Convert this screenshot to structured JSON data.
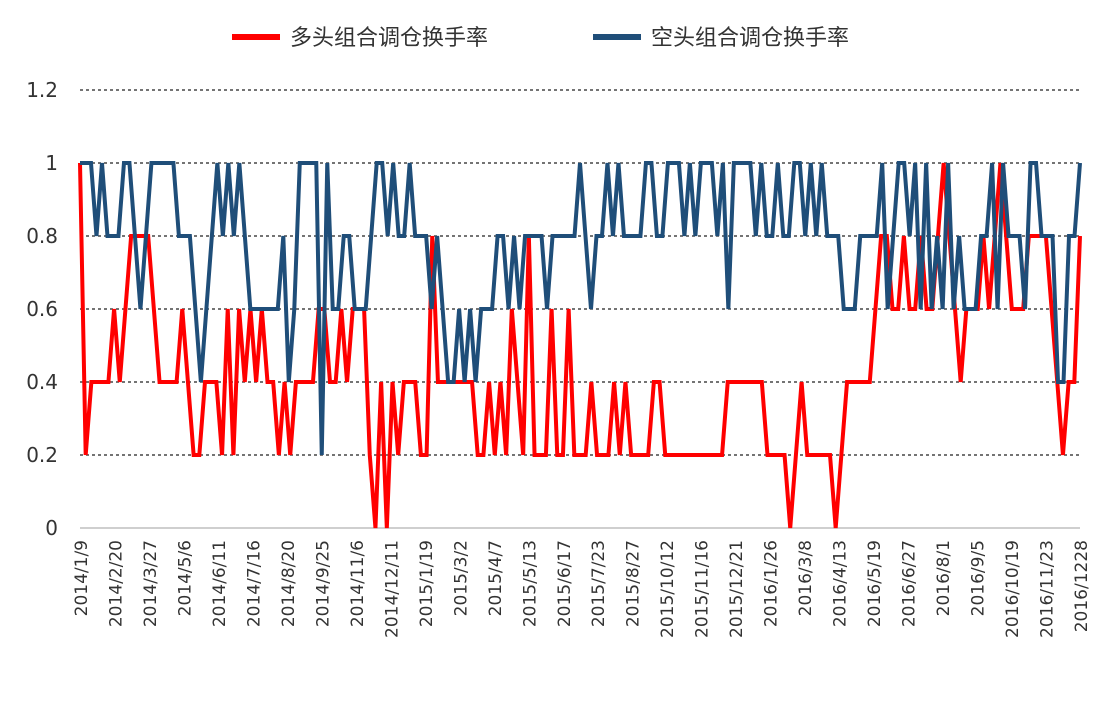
{
  "chart_data": {
    "type": "line",
    "title": "",
    "xlabel": "",
    "ylabel": "",
    "ylim": [
      0,
      1.2
    ],
    "yticks": [
      0,
      0.2,
      0.4,
      0.6,
      0.8,
      1,
      1.2
    ],
    "ytick_labels": [
      "0",
      "0.2",
      "0.4",
      "0.6",
      "0.8",
      "1",
      "1.2"
    ],
    "grid": true,
    "legend_position": "top-center",
    "x_tick_labels": [
      "2014/1/9",
      "2014/2/20",
      "2014/3/27",
      "2014/5/6",
      "2014/6/11",
      "2014/7/16",
      "2014/8/20",
      "2014/9/25",
      "2014/11/6",
      "2014/12/11",
      "2015/1/19",
      "2015/3/2",
      "2015/4/7",
      "2015/5/13",
      "2015/6/17",
      "2015/7/23",
      "2015/8/27",
      "2015/10/12",
      "2015/11/16",
      "2015/12/21",
      "2016/1/26",
      "2016/3/8",
      "2016/4/13",
      "2016/5/19",
      "2016/6/27",
      "2016/8/1",
      "2016/9/5",
      "2016/10/19",
      "2016/11/23",
      "2016/1228"
    ],
    "series": [
      {
        "name": "多头组合调仓换手率",
        "color": "#ff0000",
        "values": [
          1,
          0.2,
          0.4,
          0.4,
          0.4,
          0.4,
          0.6,
          0.4,
          0.6,
          0.8,
          0.8,
          0.8,
          0.8,
          0.6,
          0.4,
          0.4,
          0.4,
          0.4,
          0.6,
          0.4,
          0.2,
          0.2,
          0.4,
          0.4,
          0.4,
          0.2,
          0.6,
          0.2,
          0.6,
          0.4,
          0.6,
          0.4,
          0.6,
          0.4,
          0.4,
          0.2,
          0.4,
          0.2,
          0.4,
          0.4,
          0.4,
          0.4,
          0.6,
          0.6,
          0.4,
          0.4,
          0.6,
          0.4,
          0.6,
          0.6,
          0.6,
          0.2,
          0,
          0.4,
          0,
          0.4,
          0.2,
          0.4,
          0.4,
          0.4,
          0.2,
          0.2,
          0.8,
          0.4,
          0.4,
          0.4,
          0.4,
          0.4,
          0.4,
          0.4,
          0.2,
          0.2,
          0.4,
          0.2,
          0.4,
          0.2,
          0.6,
          0.4,
          0.2,
          0.8,
          0.2,
          0.2,
          0.2,
          0.6,
          0.2,
          0.2,
          0.6,
          0.2,
          0.2,
          0.2,
          0.4,
          0.2,
          0.2,
          0.2,
          0.4,
          0.2,
          0.4,
          0.2,
          0.2,
          0.2,
          0.2,
          0.4,
          0.4,
          0.2,
          0.2,
          0.2,
          0.2,
          0.2,
          0.2,
          0.2,
          0.2,
          0.2,
          0.2,
          0.2,
          0.4,
          0.4,
          0.4,
          0.4,
          0.4,
          0.4,
          0.4,
          0.2,
          0.2,
          0.2,
          0.2,
          0,
          0.2,
          0.4,
          0.2,
          0.2,
          0.2,
          0.2,
          0.2,
          0,
          0.2,
          0.4,
          0.4,
          0.4,
          0.4,
          0.4,
          0.6,
          0.8,
          0.8,
          0.6,
          0.6,
          0.8,
          0.6,
          0.6,
          0.8,
          0.6,
          0.6,
          0.8,
          1,
          0.8,
          0.6,
          0.4,
          0.6,
          0.6,
          0.6,
          0.8,
          0.6,
          0.8,
          1,
          0.8,
          0.6,
          0.6,
          0.6,
          0.8,
          0.8,
          0.8,
          0.8,
          0.6,
          0.4,
          0.2,
          0.4,
          0.4,
          0.8
        ]
      },
      {
        "name": "空头组合调仓换手率",
        "color": "#1f4e79",
        "values": [
          1,
          1,
          1,
          0.8,
          1,
          0.8,
          0.8,
          0.8,
          1,
          1,
          0.8,
          0.6,
          0.8,
          1,
          1,
          1,
          1,
          1,
          0.8,
          0.8,
          0.8,
          0.6,
          0.4,
          0.6,
          0.8,
          1,
          0.8,
          1,
          0.8,
          1,
          0.8,
          0.6,
          0.6,
          0.6,
          0.6,
          0.6,
          0.6,
          0.8,
          0.4,
          0.6,
          1,
          1,
          1,
          1,
          0.2,
          1,
          0.6,
          0.6,
          0.8,
          0.8,
          0.6,
          0.6,
          0.6,
          0.8,
          1,
          1,
          0.8,
          1,
          0.8,
          0.8,
          1,
          0.8,
          0.8,
          0.8,
          0.6,
          0.8,
          0.6,
          0.4,
          0.4,
          0.6,
          0.4,
          0.6,
          0.4,
          0.6,
          0.6,
          0.6,
          0.8,
          0.8,
          0.6,
          0.8,
          0.6,
          0.8,
          0.8,
          0.8,
          0.8,
          0.6,
          0.8,
          0.8,
          0.8,
          0.8,
          0.8,
          1,
          0.8,
          0.6,
          0.8,
          0.8,
          1,
          0.8,
          1,
          0.8,
          0.8,
          0.8,
          0.8,
          1,
          1,
          0.8,
          0.8,
          1,
          1,
          1,
          0.8,
          1,
          0.8,
          1,
          1,
          1,
          0.8,
          1,
          0.6,
          1,
          1,
          1,
          1,
          0.8,
          1,
          0.8,
          0.8,
          1,
          0.8,
          0.8,
          1,
          1,
          0.8,
          1,
          0.8,
          1,
          0.8,
          0.8,
          0.8,
          0.6,
          0.6,
          0.6,
          0.8,
          0.8,
          0.8,
          0.8,
          1,
          0.6,
          0.8,
          1,
          1,
          0.8,
          1,
          0.6,
          1,
          0.6,
          0.8,
          0.6,
          1,
          0.6,
          0.8,
          0.6,
          0.6,
          0.6,
          0.8,
          0.8,
          1,
          0.6,
          1,
          0.8,
          0.8,
          0.8,
          0.6,
          1,
          1,
          0.8,
          0.8,
          0.8,
          0.4,
          0.4,
          0.8,
          0.8,
          1
        ]
      }
    ]
  }
}
